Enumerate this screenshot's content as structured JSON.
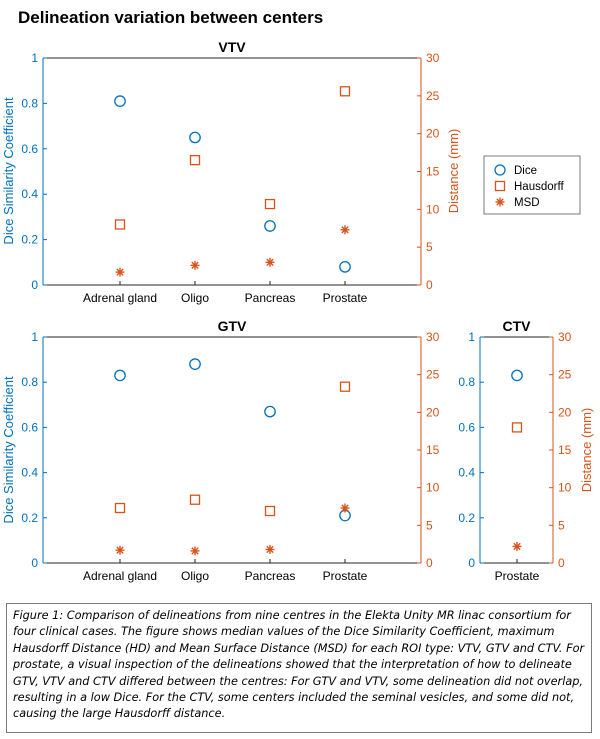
{
  "page_title": "Delineation variation between centers",
  "caption": "Figure 1: Comparison of delineations from nine centres in the Elekta Unity MR linac consortium for four clinical cases. The figure shows median values of the Dice Similarity Coefficient, maximum Hausdorff Distance (HD) and Mean Surface Distance (MSD) for each ROI type: VTV, GTV and CTV. For prostate, a visual inspection of the delineations showed that the interpretation of how to delineate GTV, VTV and CTV differed between the centres: For GTV and VTV, some delineation did not overlap, resulting in a low Dice. For the CTV, some centers included the seminal vesicles, and some did not, causing the large Hausdorff distance.",
  "colors": {
    "dice": "#0072BD",
    "distance": "#D95319",
    "axis": "#262626"
  },
  "legend": {
    "position": "right",
    "entries": [
      {
        "label": "Dice",
        "marker": "circle",
        "color": "#0072BD"
      },
      {
        "label": "Hausdorff",
        "marker": "square",
        "color": "#D95319"
      },
      {
        "label": "MSD",
        "marker": "asterisk",
        "color": "#D95319"
      }
    ]
  },
  "chart_data": [
    {
      "type": "scatter",
      "title": "VTV",
      "categories": [
        "Adrenal gland",
        "Oligo",
        "Pancreas",
        "Prostate"
      ],
      "ylabel": "Dice Similarity Coefficient",
      "y2label": "Distance (mm)",
      "ylim": [
        0,
        1
      ],
      "y2lim": [
        0,
        30
      ],
      "yticks": [
        "0",
        "0.2",
        "0.4",
        "0.6",
        "0.8",
        "1"
      ],
      "y2ticks": [
        "0",
        "5",
        "10",
        "15",
        "20",
        "25",
        "30"
      ],
      "series": [
        {
          "name": "Dice",
          "axis": "left",
          "values": [
            0.81,
            0.65,
            0.26,
            0.08
          ]
        },
        {
          "name": "Hausdorff",
          "axis": "right",
          "values": [
            8.0,
            16.5,
            10.7,
            25.6
          ]
        },
        {
          "name": "MSD",
          "axis": "right",
          "values": [
            1.7,
            2.6,
            3.0,
            7.3
          ]
        }
      ]
    },
    {
      "type": "scatter",
      "title": "GTV",
      "categories": [
        "Adrenal gland",
        "Oligo",
        "Pancreas",
        "Prostate"
      ],
      "ylabel": "Dice Similarity Coefficient",
      "y2label": "",
      "ylim": [
        0,
        1
      ],
      "y2lim": [
        0,
        30
      ],
      "yticks": [
        "0",
        "0.2",
        "0.4",
        "0.6",
        "0.8",
        "1"
      ],
      "y2ticks": [
        "0",
        "5",
        "10",
        "15",
        "20",
        "25",
        "30"
      ],
      "series": [
        {
          "name": "Dice",
          "axis": "left",
          "values": [
            0.83,
            0.88,
            0.67,
            0.21
          ]
        },
        {
          "name": "Hausdorff",
          "axis": "right",
          "values": [
            7.3,
            8.4,
            6.9,
            23.4
          ]
        },
        {
          "name": "MSD",
          "axis": "right",
          "values": [
            1.7,
            1.6,
            1.8,
            7.3
          ]
        }
      ]
    },
    {
      "type": "scatter",
      "title": "CTV",
      "categories": [
        "Prostate"
      ],
      "ylabel": "",
      "y2label": "Distance (mm)",
      "ylim": [
        0,
        1
      ],
      "y2lim": [
        0,
        30
      ],
      "yticks": [
        "0",
        "0.2",
        "0.4",
        "0.6",
        "0.8",
        "1"
      ],
      "y2ticks": [
        "0",
        "5",
        "10",
        "15",
        "20",
        "25",
        "30"
      ],
      "series": [
        {
          "name": "Dice",
          "axis": "left",
          "values": [
            0.83
          ]
        },
        {
          "name": "Hausdorff",
          "axis": "right",
          "values": [
            18.0
          ]
        },
        {
          "name": "MSD",
          "axis": "right",
          "values": [
            2.2
          ]
        }
      ]
    }
  ]
}
